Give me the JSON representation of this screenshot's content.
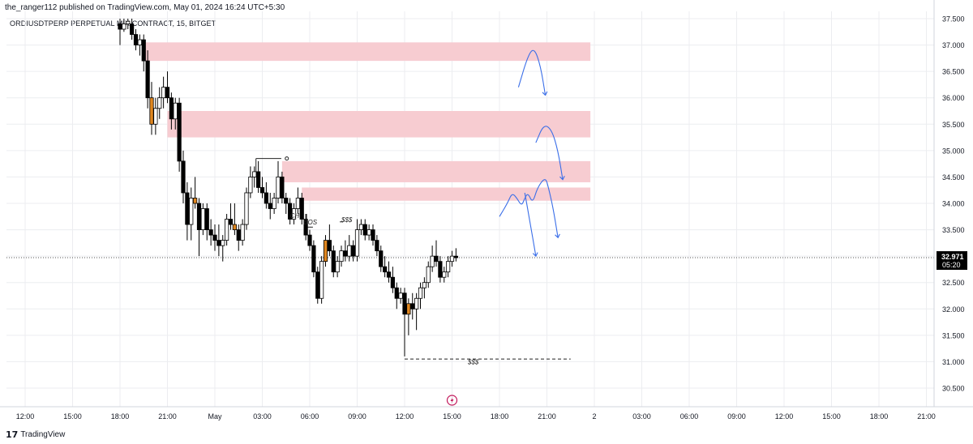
{
  "header": {
    "publisher_line": "the_ranger112 published on TradingView.com, May 01, 2024 16:24 UTC+5:30",
    "symbol_line": "ORDIUSDTPERP PERPETUAL MIX CONTRACT, 15, BITGET"
  },
  "footer": {
    "brand": "TradingView",
    "logo_glyph": "17"
  },
  "colors": {
    "bull_body": "#ffffff",
    "bear_body": "#000000",
    "highlight_body": "#e0861f",
    "wick": "#000000",
    "zone_fill": "#f7ccd1",
    "drawing_blue": "#3a6ee8",
    "last_price_bg": "#000000",
    "last_price_text": "#ffffff",
    "grid": "#ecedf0",
    "axis_text": "#131722"
  },
  "chart_data": {
    "type": "candlestick",
    "title": "ORDIUSDTPERP PERPETUAL MIX CONTRACT, 15, BITGET",
    "timeframe_minutes": 15,
    "exchange": "BITGET",
    "y_axis": {
      "ticks": [
        "37.500",
        "37.000",
        "36.500",
        "36.000",
        "35.500",
        "35.000",
        "34.500",
        "34.000",
        "33.500",
        "33.000",
        "32.500",
        "32.000",
        "31.500",
        "31.000",
        "30.500"
      ],
      "ylim": [
        30.3,
        37.55
      ]
    },
    "x_axis": {
      "ticks": [
        "12:00",
        "15:00",
        "18:00",
        "21:00",
        "May",
        "03:00",
        "06:00",
        "09:00",
        "12:00",
        "15:00",
        "18:00",
        "21:00",
        "2",
        "03:00",
        "06:00",
        "09:00",
        "12:00",
        "15:00",
        "18:00",
        "21:00"
      ],
      "tick_hours": [
        12,
        15,
        18,
        21,
        24,
        27,
        30,
        33,
        36,
        39,
        42,
        45,
        48,
        51,
        54,
        57,
        60,
        63,
        66,
        69
      ]
    },
    "last_price": {
      "value": 32.971,
      "label": "32.971",
      "countdown": "05:20"
    },
    "candles": [
      {
        "t": 18.0,
        "o": 37.4,
        "h": 37.5,
        "l": 37.0,
        "c": 37.3
      },
      {
        "t": 18.25,
        "o": 37.3,
        "h": 37.5,
        "l": 37.25,
        "c": 37.4
      },
      {
        "t": 18.5,
        "o": 37.4,
        "h": 37.5,
        "l": 37.3,
        "c": 37.45
      },
      {
        "t": 18.75,
        "o": 37.4,
        "h": 37.5,
        "l": 37.1,
        "c": 37.2
      },
      {
        "t": 19.0,
        "o": 37.2,
        "h": 37.3,
        "l": 36.9,
        "c": 37.0
      },
      {
        "t": 19.25,
        "o": 37.0,
        "h": 37.2,
        "l": 36.8,
        "c": 37.1
      },
      {
        "t": 19.5,
        "o": 37.1,
        "h": 37.2,
        "l": 36.5,
        "c": 36.7
      },
      {
        "t": 19.75,
        "o": 36.7,
        "h": 36.9,
        "l": 35.8,
        "c": 36.0
      },
      {
        "t": 20.0,
        "o": 36.0,
        "h": 36.3,
        "l": 35.3,
        "c": 35.5
      },
      {
        "t": 20.25,
        "o": 35.5,
        "h": 36.0,
        "l": 35.3,
        "c": 35.8
      },
      {
        "t": 20.5,
        "o": 35.8,
        "h": 36.2,
        "l": 35.6,
        "c": 36.0
      },
      {
        "t": 20.75,
        "o": 36.0,
        "h": 36.4,
        "l": 35.8,
        "c": 36.2
      },
      {
        "t": 21.0,
        "o": 36.2,
        "h": 36.5,
        "l": 35.9,
        "c": 36.0
      },
      {
        "t": 21.25,
        "o": 36.0,
        "h": 36.1,
        "l": 35.4,
        "c": 35.6
      },
      {
        "t": 21.5,
        "o": 35.6,
        "h": 36.0,
        "l": 35.4,
        "c": 35.9
      },
      {
        "t": 21.75,
        "o": 35.9,
        "h": 36.0,
        "l": 34.6,
        "c": 34.8
      },
      {
        "t": 22.0,
        "o": 34.8,
        "h": 35.0,
        "l": 34.0,
        "c": 34.2
      },
      {
        "t": 22.25,
        "o": 34.2,
        "h": 34.4,
        "l": 33.3,
        "c": 33.6
      },
      {
        "t": 22.5,
        "o": 33.6,
        "h": 34.3,
        "l": 33.3,
        "c": 34.1
      },
      {
        "t": 22.75,
        "o": 34.1,
        "h": 34.5,
        "l": 33.9,
        "c": 34.0
      },
      {
        "t": 23.0,
        "o": 34.0,
        "h": 34.1,
        "l": 33.0,
        "c": 33.5
      },
      {
        "t": 23.25,
        "o": 33.5,
        "h": 34.0,
        "l": 33.4,
        "c": 33.9
      },
      {
        "t": 23.5,
        "o": 33.9,
        "h": 34.0,
        "l": 33.3,
        "c": 33.5
      },
      {
        "t": 23.75,
        "o": 33.5,
        "h": 33.7,
        "l": 33.2,
        "c": 33.4
      },
      {
        "t": 24.0,
        "o": 33.4,
        "h": 33.6,
        "l": 33.1,
        "c": 33.3
      },
      {
        "t": 24.25,
        "o": 33.3,
        "h": 33.6,
        "l": 33.0,
        "c": 33.2
      },
      {
        "t": 24.5,
        "o": 33.2,
        "h": 33.4,
        "l": 32.9,
        "c": 33.3
      },
      {
        "t": 24.75,
        "o": 33.3,
        "h": 33.8,
        "l": 33.2,
        "c": 33.7
      },
      {
        "t": 25.0,
        "o": 33.7,
        "h": 34.0,
        "l": 33.5,
        "c": 33.6
      },
      {
        "t": 25.25,
        "o": 33.6,
        "h": 34.0,
        "l": 33.4,
        "c": 33.5
      },
      {
        "t": 25.5,
        "o": 33.5,
        "h": 33.6,
        "l": 33.1,
        "c": 33.3
      },
      {
        "t": 25.75,
        "o": 33.3,
        "h": 33.7,
        "l": 33.2,
        "c": 33.6
      },
      {
        "t": 26.0,
        "o": 33.6,
        "h": 34.3,
        "l": 33.5,
        "c": 34.2
      },
      {
        "t": 26.25,
        "o": 34.2,
        "h": 34.7,
        "l": 34.1,
        "c": 34.5
      },
      {
        "t": 26.5,
        "o": 34.5,
        "h": 34.7,
        "l": 34.3,
        "c": 34.6
      },
      {
        "t": 26.75,
        "o": 34.6,
        "h": 34.8,
        "l": 34.2,
        "c": 34.3
      },
      {
        "t": 27.0,
        "o": 34.3,
        "h": 34.5,
        "l": 34.1,
        "c": 34.2
      },
      {
        "t": 27.25,
        "o": 34.2,
        "h": 34.4,
        "l": 33.9,
        "c": 34.0
      },
      {
        "t": 27.5,
        "o": 34.0,
        "h": 34.2,
        "l": 33.7,
        "c": 33.9
      },
      {
        "t": 27.75,
        "o": 33.9,
        "h": 34.2,
        "l": 33.8,
        "c": 34.1
      },
      {
        "t": 28.0,
        "o": 34.1,
        "h": 34.8,
        "l": 34.0,
        "c": 34.5
      },
      {
        "t": 28.25,
        "o": 34.5,
        "h": 34.6,
        "l": 34.0,
        "c": 34.1
      },
      {
        "t": 28.5,
        "o": 34.1,
        "h": 34.2,
        "l": 33.8,
        "c": 34.0
      },
      {
        "t": 28.75,
        "o": 34.0,
        "h": 34.1,
        "l": 33.6,
        "c": 33.7
      },
      {
        "t": 29.0,
        "o": 33.7,
        "h": 34.0,
        "l": 33.6,
        "c": 33.9
      },
      {
        "t": 29.25,
        "o": 33.9,
        "h": 34.3,
        "l": 33.8,
        "c": 34.1
      },
      {
        "t": 29.5,
        "o": 34.1,
        "h": 34.2,
        "l": 33.6,
        "c": 33.7
      },
      {
        "t": 29.75,
        "o": 33.7,
        "h": 33.8,
        "l": 33.3,
        "c": 33.4
      },
      {
        "t": 30.0,
        "o": 33.4,
        "h": 33.5,
        "l": 33.1,
        "c": 33.2
      },
      {
        "t": 30.25,
        "o": 33.2,
        "h": 33.3,
        "l": 32.6,
        "c": 32.7
      },
      {
        "t": 30.5,
        "o": 32.7,
        "h": 32.8,
        "l": 32.1,
        "c": 32.2
      },
      {
        "t": 30.75,
        "o": 32.2,
        "h": 33.0,
        "l": 32.1,
        "c": 32.9
      },
      {
        "t": 31.0,
        "o": 32.9,
        "h": 33.4,
        "l": 32.8,
        "c": 33.3
      },
      {
        "t": 31.25,
        "o": 33.3,
        "h": 33.6,
        "l": 33.0,
        "c": 33.1
      },
      {
        "t": 31.5,
        "o": 33.1,
        "h": 33.2,
        "l": 32.6,
        "c": 32.7
      },
      {
        "t": 31.75,
        "o": 32.7,
        "h": 33.0,
        "l": 32.6,
        "c": 32.9
      },
      {
        "t": 32.0,
        "o": 32.9,
        "h": 33.2,
        "l": 32.8,
        "c": 33.1
      },
      {
        "t": 32.25,
        "o": 33.1,
        "h": 33.3,
        "l": 32.9,
        "c": 33.0
      },
      {
        "t": 32.5,
        "o": 33.0,
        "h": 33.4,
        "l": 32.9,
        "c": 33.2
      },
      {
        "t": 32.75,
        "o": 33.2,
        "h": 33.3,
        "l": 32.9,
        "c": 33.0
      },
      {
        "t": 33.0,
        "o": 33.0,
        "h": 33.7,
        "l": 32.9,
        "c": 33.5
      },
      {
        "t": 33.25,
        "o": 33.5,
        "h": 33.7,
        "l": 33.4,
        "c": 33.6
      },
      {
        "t": 33.5,
        "o": 33.6,
        "h": 33.7,
        "l": 33.3,
        "c": 33.4
      },
      {
        "t": 33.75,
        "o": 33.4,
        "h": 33.6,
        "l": 33.3,
        "c": 33.5
      },
      {
        "t": 34.0,
        "o": 33.5,
        "h": 33.6,
        "l": 33.2,
        "c": 33.3
      },
      {
        "t": 34.25,
        "o": 33.3,
        "h": 33.4,
        "l": 33.0,
        "c": 33.1
      },
      {
        "t": 34.5,
        "o": 33.1,
        "h": 33.2,
        "l": 32.7,
        "c": 32.8
      },
      {
        "t": 34.75,
        "o": 32.8,
        "h": 33.0,
        "l": 32.6,
        "c": 32.7
      },
      {
        "t": 35.0,
        "o": 32.7,
        "h": 32.9,
        "l": 32.5,
        "c": 32.6
      },
      {
        "t": 35.25,
        "o": 32.6,
        "h": 32.8,
        "l": 32.3,
        "c": 32.4
      },
      {
        "t": 35.5,
        "o": 32.4,
        "h": 32.5,
        "l": 32.0,
        "c": 32.2
      },
      {
        "t": 35.75,
        "o": 32.2,
        "h": 32.4,
        "l": 32.1,
        "c": 32.3
      },
      {
        "t": 36.0,
        "o": 32.3,
        "h": 32.4,
        "l": 31.1,
        "c": 31.9
      },
      {
        "t": 36.25,
        "o": 31.9,
        "h": 32.2,
        "l": 31.5,
        "c": 32.1
      },
      {
        "t": 36.5,
        "o": 32.1,
        "h": 32.3,
        "l": 31.8,
        "c": 32.0
      },
      {
        "t": 36.75,
        "o": 32.0,
        "h": 32.3,
        "l": 31.6,
        "c": 32.2
      },
      {
        "t": 37.0,
        "o": 32.2,
        "h": 32.5,
        "l": 32.0,
        "c": 32.4
      },
      {
        "t": 37.25,
        "o": 32.4,
        "h": 32.6,
        "l": 32.2,
        "c": 32.5
      },
      {
        "t": 37.5,
        "o": 32.5,
        "h": 32.9,
        "l": 32.4,
        "c": 32.8
      },
      {
        "t": 37.75,
        "o": 32.8,
        "h": 33.2,
        "l": 32.7,
        "c": 33.0
      },
      {
        "t": 38.0,
        "o": 33.0,
        "h": 33.3,
        "l": 32.8,
        "c": 32.9
      },
      {
        "t": 38.25,
        "o": 32.9,
        "h": 33.0,
        "l": 32.5,
        "c": 32.6
      },
      {
        "t": 38.5,
        "o": 32.6,
        "h": 32.8,
        "l": 32.5,
        "c": 32.7
      },
      {
        "t": 38.75,
        "o": 32.7,
        "h": 33.0,
        "l": 32.6,
        "c": 32.9
      },
      {
        "t": 39.0,
        "o": 32.9,
        "h": 33.1,
        "l": 32.8,
        "c": 33.0
      },
      {
        "t": 39.25,
        "o": 33.0,
        "h": 33.15,
        "l": 32.9,
        "c": 32.97
      }
    ],
    "highlighted_candles": [
      20.0,
      22.75,
      25.25,
      31.0,
      36.25
    ],
    "zones": [
      {
        "t_start": 19.5,
        "t_end": 47.75,
        "top": 37.05,
        "bottom": 36.7,
        "label": ""
      },
      {
        "t_start": 21.0,
        "t_end": 47.75,
        "top": 35.75,
        "bottom": 35.25,
        "label": ""
      },
      {
        "t_start": 28.25,
        "t_end": 47.75,
        "top": 34.8,
        "bottom": 34.4,
        "label": ""
      },
      {
        "t_start": 29.5,
        "t_end": 47.75,
        "top": 34.3,
        "bottom": 34.05,
        "label": ""
      }
    ],
    "annotations": [
      {
        "text": "CH",
        "t": 28.75,
        "y": 33.72
      },
      {
        "text": "BOS",
        "t": 29.6,
        "y": 33.6
      },
      {
        "text": "$$$",
        "t": 32.0,
        "y": 33.65
      },
      {
        "text": "$$$",
        "t": 40.0,
        "y": 30.95
      }
    ],
    "liquidity_lines": [
      {
        "t_start": 36.0,
        "t_end": 46.5,
        "y": 31.05,
        "style": "dashed",
        "label_index": 3
      }
    ],
    "projected_paths": [
      [
        [
          43.2,
          36.2
        ],
        [
          43.8,
          36.8
        ],
        [
          44.2,
          36.95
        ],
        [
          44.6,
          36.6
        ],
        [
          44.9,
          36.05
        ]
      ],
      [
        [
          44.3,
          35.15
        ],
        [
          44.8,
          35.5
        ],
        [
          45.3,
          35.4
        ],
        [
          45.7,
          35.0
        ],
        [
          46.0,
          34.45
        ]
      ],
      [
        [
          42.0,
          33.75
        ],
        [
          42.5,
          34.0
        ],
        [
          42.8,
          34.2
        ],
        [
          43.1,
          34.1
        ],
        [
          43.4,
          33.95
        ],
        [
          43.6,
          34.1
        ],
        [
          43.8,
          34.2
        ],
        [
          44.1,
          34.0
        ],
        [
          44.4,
          34.3
        ],
        [
          44.9,
          34.5
        ],
        [
          45.1,
          34.3
        ],
        [
          45.4,
          33.9
        ],
        [
          45.7,
          33.35
        ]
      ],
      [
        [
          43.6,
          34.2
        ],
        [
          43.9,
          33.7
        ],
        [
          44.3,
          33.0
        ]
      ]
    ],
    "grid": true,
    "legend": "none"
  }
}
